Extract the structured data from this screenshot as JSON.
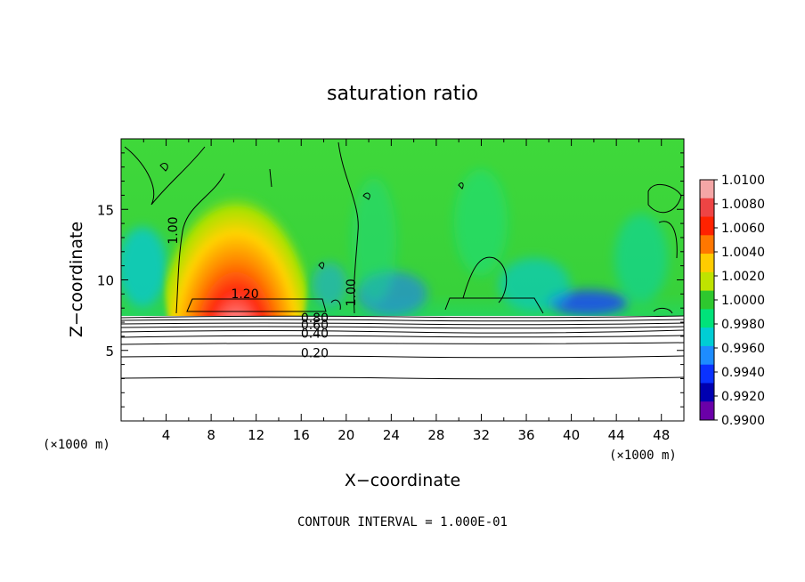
{
  "chart_data": {
    "type": "heatmap",
    "title": "saturation ratio",
    "xlabel": "X−coordinate",
    "ylabel": "Z−coordinate",
    "x_unit_left": "(×1000 m)",
    "x_unit_right": "(×1000 m)",
    "xlim": [
      0,
      50
    ],
    "ylim": [
      0,
      20
    ],
    "x_ticks": [
      4,
      8,
      12,
      16,
      20,
      24,
      28,
      32,
      36,
      40,
      44,
      48
    ],
    "x_tick_labels": [
      "4",
      "8",
      "12",
      "16",
      "20",
      "24",
      "28",
      "32",
      "36",
      "40",
      "44",
      "48"
    ],
    "y_ticks": [
      5,
      10,
      15
    ],
    "y_tick_labels": [
      "5",
      "10",
      "15"
    ],
    "contour_labels": [
      {
        "text": "1.20",
        "x": 11,
        "z": 8.7
      },
      {
        "text": "1.00",
        "x": 5,
        "z": 13.5
      },
      {
        "text": "1.00",
        "x": 20.8,
        "z": 9.1
      },
      {
        "text": "0.80",
        "x": 17.2,
        "z": 7.0
      },
      {
        "text": "0.60",
        "x": 17.2,
        "z": 6.5
      },
      {
        "text": "0.40",
        "x": 17.2,
        "z": 5.9
      },
      {
        "text": "0.20",
        "x": 17.2,
        "z": 4.5
      }
    ],
    "contour_interval_text": "CONTOUR INTERVAL =  1.000E-01",
    "colorbar": {
      "labels": [
        "1.0100",
        "1.0080",
        "1.0060",
        "1.0040",
        "1.0020",
        "1.0000",
        "0.9980",
        "0.9960",
        "0.9940",
        "0.9920",
        "0.9900"
      ],
      "colors": [
        "#f4a6a6",
        "#ee4444",
        "#ff2200",
        "#ff7700",
        "#ffcc00",
        "#bfe300",
        "#2ec82e",
        "#00e27a",
        "#00cdd4",
        "#1d8cff",
        "#0a32ff",
        "#0000b0",
        "#6a00a8"
      ]
    },
    "grid": false,
    "legend": "right"
  }
}
